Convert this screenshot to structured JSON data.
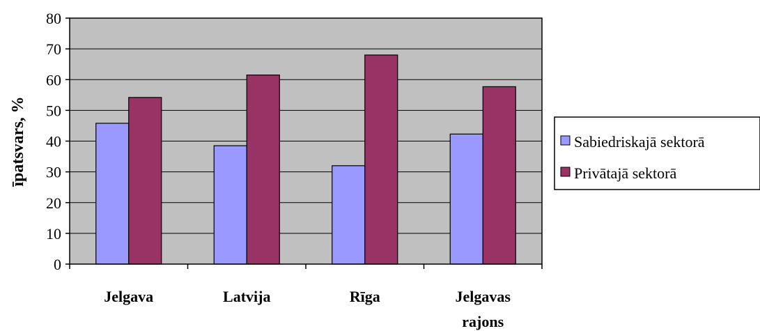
{
  "chart_data": {
    "type": "bar",
    "categories": [
      [
        "Jelgava"
      ],
      [
        "Latvija"
      ],
      [
        "Rīga"
      ],
      [
        "Jelgavas",
        "rajons"
      ]
    ],
    "series": [
      {
        "name": "Sabiedriskajā sektorā",
        "color": "#9999ff",
        "values": [
          45.8,
          38.5,
          32.0,
          42.3
        ]
      },
      {
        "name": "Privātajā sektorā",
        "color": "#993366",
        "values": [
          54.2,
          61.5,
          68.0,
          57.7
        ]
      }
    ],
    "ylabel": "īpatsvars, %",
    "ylim": [
      0,
      80
    ],
    "yticks": [
      0,
      10,
      20,
      30,
      40,
      50,
      60,
      70,
      80
    ],
    "plot_background": "#c0c0c0",
    "grid": true,
    "legend_position": "right"
  }
}
